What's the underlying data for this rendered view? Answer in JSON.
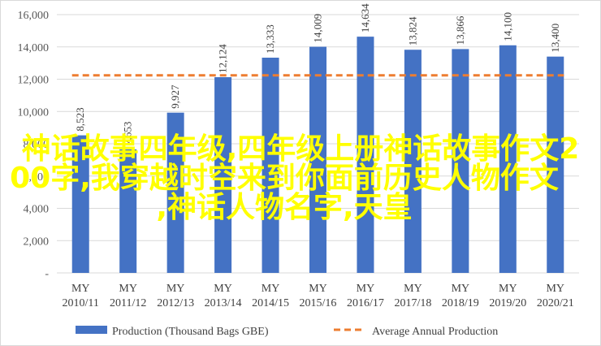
{
  "chart_data": {
    "type": "bar",
    "categories": [
      "MY 2010/11",
      "MY 2011/12",
      "MY 2012/13",
      "MY 2013/14",
      "MY 2014/15",
      "MY 2015/16",
      "MY 2016/17",
      "MY 2017/18",
      "MY 2018/19",
      "MY 2019/20",
      "MY 2020/21"
    ],
    "category_lines": [
      [
        "MY",
        "2010/11"
      ],
      [
        "MY",
        "2011/12"
      ],
      [
        "MY",
        "2012/13"
      ],
      [
        "MY",
        "2013/14"
      ],
      [
        "MY",
        "2014/15"
      ],
      [
        "MY",
        "2015/16"
      ],
      [
        "MY",
        "2016/17"
      ],
      [
        "MY",
        "2017/18"
      ],
      [
        "MY",
        "2018/19"
      ],
      [
        "MY",
        "2019/20"
      ],
      [
        "MY",
        "2020/21"
      ]
    ],
    "series": [
      {
        "name": "Production (Thousand Bags GBE)",
        "type": "bar",
        "color": "#4472c4",
        "values": [
          8523,
          7653,
          9927,
          12124,
          13333,
          14009,
          14634,
          13824,
          13866,
          14100,
          13400
        ],
        "labels": [
          "8,523",
          "7,653",
          "9,927",
          "12,124",
          "13,333",
          "14,009",
          "14,634",
          "13,824",
          "13,866",
          "14,100",
          "13,400"
        ]
      },
      {
        "name": "Average Annual Production",
        "type": "line",
        "style": "dashed",
        "color": "#ed7d31",
        "values": [
          12240,
          12240,
          12240,
          12240,
          12240,
          12240,
          12240,
          12240,
          12240,
          12240,
          12240
        ]
      }
    ],
    "ylim": [
      0,
      16000
    ],
    "yticks": [
      0,
      2000,
      4000,
      6000,
      8000,
      10000,
      12000,
      14000,
      16000
    ],
    "ytick_labels": [
      "-",
      "2,000",
      "4,000",
      "6,000",
      "8,000",
      "10,000",
      "12,000",
      "14,000",
      "16,000"
    ],
    "grid": "horizontal",
    "legend_position": "bottom",
    "title": "",
    "xlabel": "",
    "ylabel": ""
  },
  "overlay": {
    "line1": "神话故事四年级,四年级上册神话故事作文2",
    "line2": "00字,我穿越时空来到你面前历史人物作文",
    "line3": ",神话人物名字,天皇",
    "color": "#ffff00"
  }
}
